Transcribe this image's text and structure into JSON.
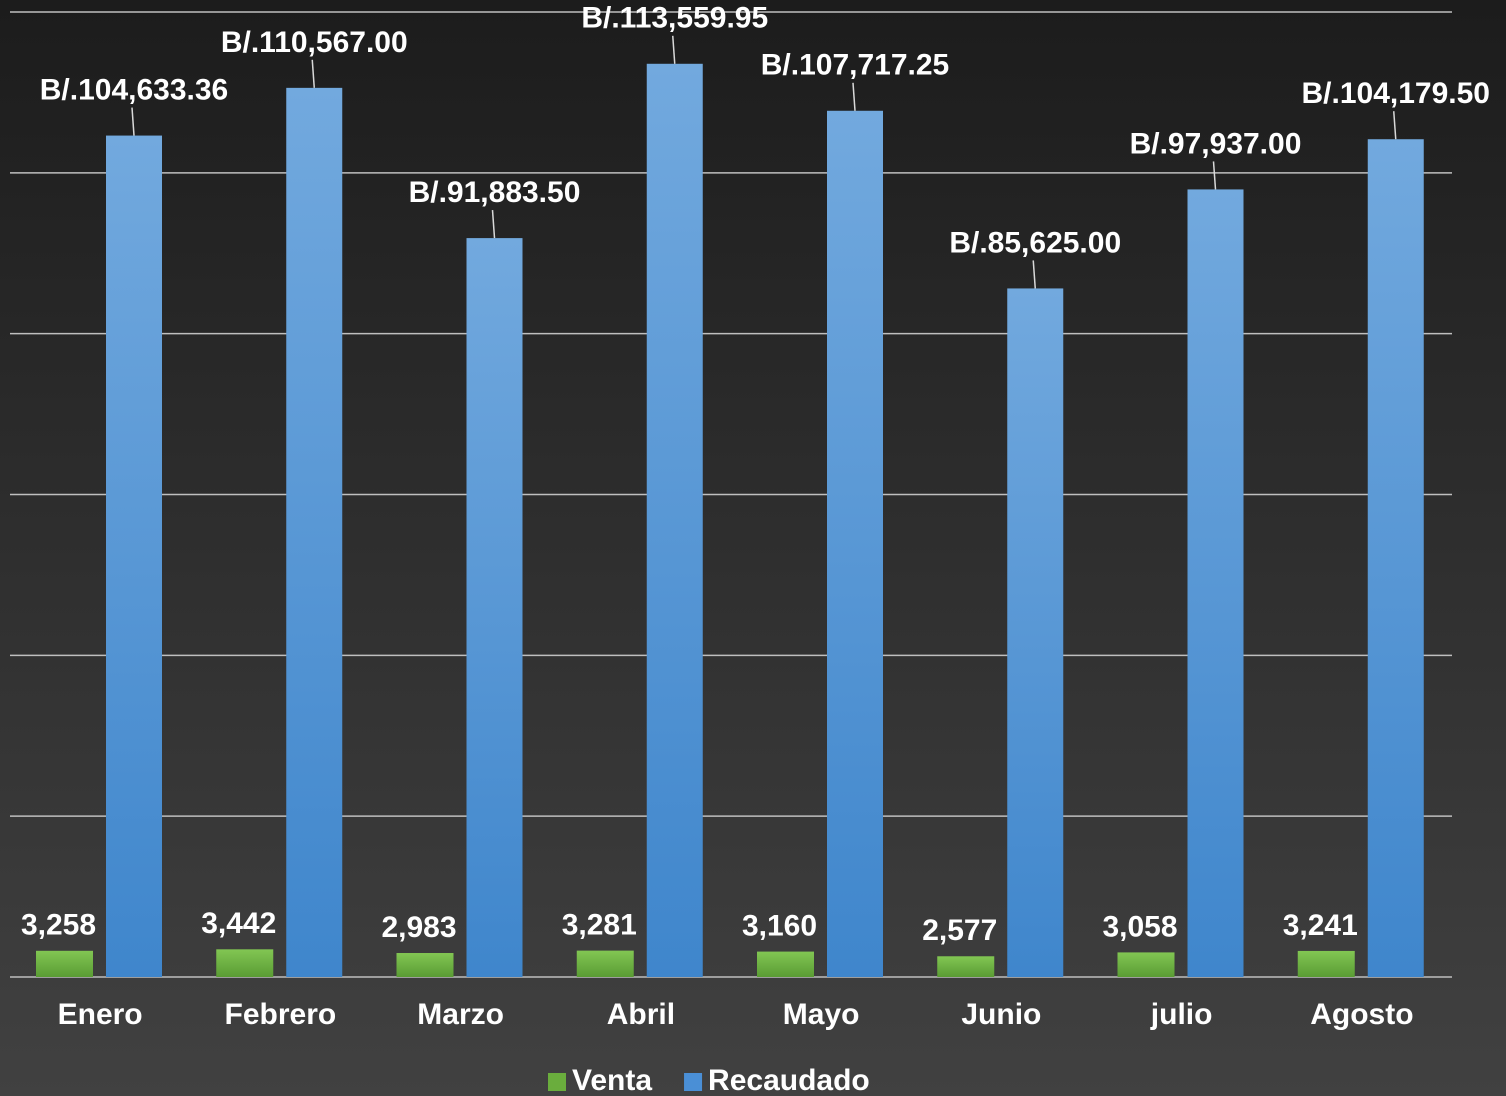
{
  "chart_data": {
    "type": "bar",
    "categories": [
      "Enero",
      "Febrero",
      "Marzo",
      "Abril",
      "Mayo",
      "Junio",
      "julio",
      "Agosto"
    ],
    "series": [
      {
        "name": "Venta",
        "color": "#6aad3d",
        "values": [
          3258,
          3442,
          2983,
          3281,
          3160,
          2577,
          3058,
          3241
        ],
        "value_labels": [
          "3,258",
          "3,442",
          "2,983",
          "3,281",
          "3,160",
          "2,577",
          "3,058",
          "3,241"
        ]
      },
      {
        "name": "Recaudado",
        "color": "#4a8fd6",
        "values": [
          104633.36,
          110567.0,
          91883.5,
          113559.95,
          107717.25,
          85625.0,
          97937.0,
          104179.5
        ],
        "value_labels": [
          "B/.104,633.36",
          "B/.110,567.00",
          "B/.91,883.50",
          "B/.113,559.95",
          "B/.107,717.25",
          "B/.85,625.00",
          "B/.97,937.00",
          "B/.104,179.50"
        ]
      }
    ],
    "ylim": [
      0,
      120000
    ],
    "yticks": [
      0,
      20000,
      40000,
      60000,
      80000,
      100000,
      120000
    ],
    "grid": true,
    "legend": "bottom"
  }
}
